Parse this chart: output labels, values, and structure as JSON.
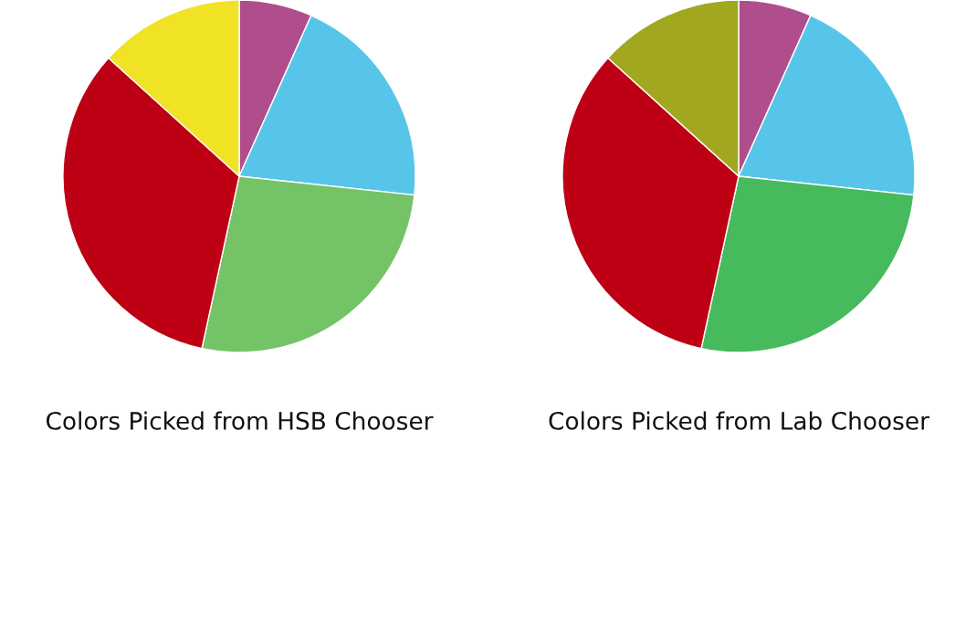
{
  "chart_data": [
    {
      "type": "pie",
      "title": "Colors Picked from HSB Chooser",
      "categories": [
        null,
        null,
        null,
        null,
        null
      ],
      "values": [
        6.7,
        20,
        26.7,
        33.3,
        13.3
      ],
      "colors": [
        "#b04d8c",
        "#57c5ea",
        "#75c367",
        "#be0015",
        "#f0e325"
      ]
    },
    {
      "type": "pie",
      "title": "Colors Picked from Lab Chooser",
      "categories": [
        null,
        null,
        null,
        null,
        null
      ],
      "values": [
        6.7,
        20,
        26.7,
        33.3,
        13.3
      ],
      "colors": [
        "#b04d8c",
        "#57c5ea",
        "#47ba5d",
        "#be0015",
        "#a2a720"
      ]
    }
  ]
}
